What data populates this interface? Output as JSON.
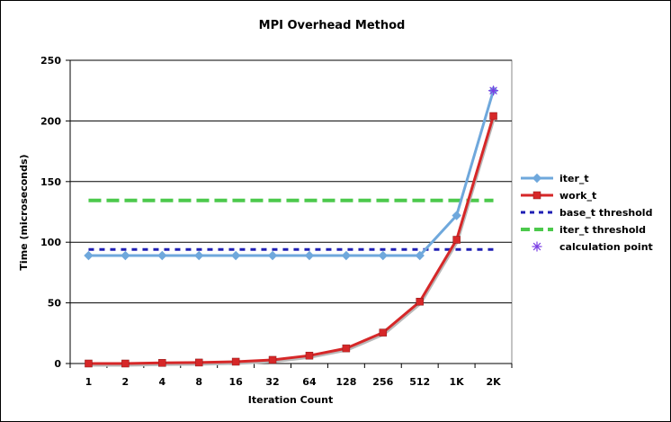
{
  "chart_data": {
    "type": "line",
    "title": "MPI Overhead Method",
    "xlabel": "Iteration Count",
    "ylabel": "Time (microseconds)",
    "categories": [
      "1",
      "2",
      "4",
      "8",
      "16",
      "32",
      "64",
      "128",
      "256",
      "512",
      "1K",
      "2K"
    ],
    "ylim": [
      0,
      250
    ],
    "yticks": [
      0,
      50,
      100,
      150,
      200,
      250
    ],
    "grid": "horizontal",
    "legend_position": "right",
    "series": [
      {
        "name": "iter_t",
        "color": "#6fa8dc",
        "marker": "diamond",
        "style": "solid",
        "values": [
          89,
          89,
          89,
          89,
          89,
          89,
          89,
          89,
          89,
          89,
          122,
          225
        ]
      },
      {
        "name": "work_t",
        "color": "#d62728",
        "marker": "square",
        "style": "solid",
        "values": [
          0,
          0,
          0.5,
          0.8,
          1.5,
          3,
          6.5,
          12.5,
          25.5,
          51,
          102,
          204
        ]
      },
      {
        "name": "base_t threshold",
        "color": "#1f1fb4",
        "marker": "none",
        "style": "dotted",
        "values": [
          94,
          94,
          94,
          94,
          94,
          94,
          94,
          94,
          94,
          94,
          94,
          94
        ]
      },
      {
        "name": "iter_t threshold",
        "color": "#4cc94c",
        "marker": "none",
        "style": "dashed",
        "values": [
          134.5,
          134.5,
          134.5,
          134.5,
          134.5,
          134.5,
          134.5,
          134.5,
          134.5,
          134.5,
          134.5,
          134.5
        ]
      },
      {
        "name": "calculation point",
        "color": "#7b3fe4",
        "marker": "asterisk",
        "style": "none",
        "points": [
          {
            "x": "2K",
            "y": 225
          }
        ]
      }
    ]
  }
}
